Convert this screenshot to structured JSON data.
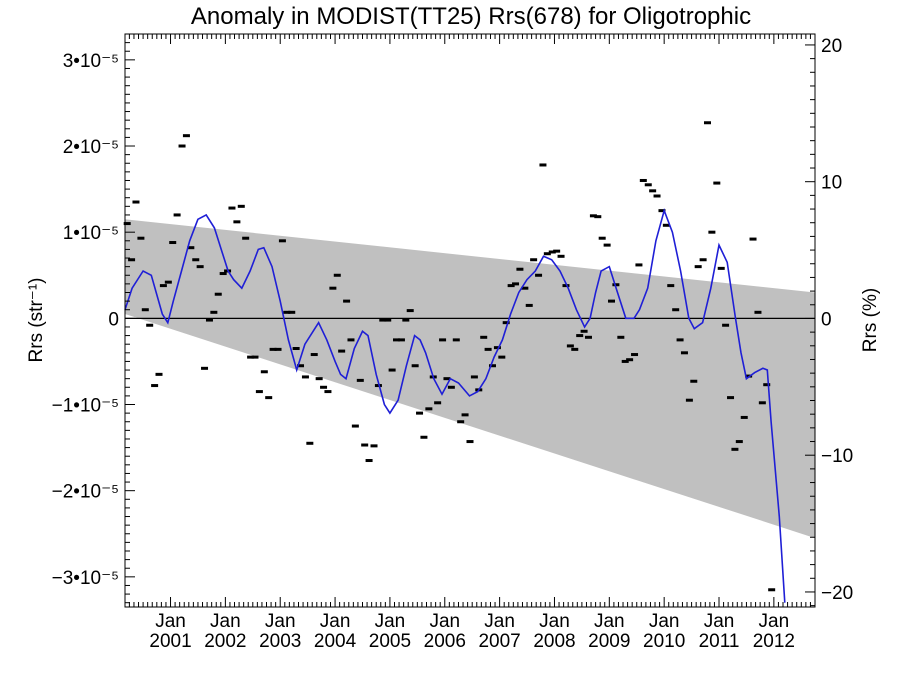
{
  "chart_data": {
    "type": "line",
    "title": "Anomaly in MODIST(TT25) Rrs(678) for Oligotrophic",
    "ylabel_left": "Rrs (str⁻¹)",
    "ylabel_right": "Rrs (%)",
    "xlabel": "",
    "x_unit": "year (decimal)",
    "xlim": [
      2000.17,
      2012.75
    ],
    "ylim_left": [
      -3.35e-05,
      3.3e-05
    ],
    "ylim_right": [
      -21.1,
      20.8
    ],
    "grid": false,
    "legend": "none",
    "x_ticks": [
      {
        "month": "Jan",
        "year": "2001",
        "x": 2001.0
      },
      {
        "month": "Jan",
        "year": "2002",
        "x": 2002.0
      },
      {
        "month": "Jan",
        "year": "2003",
        "x": 2003.0
      },
      {
        "month": "Jan",
        "year": "2004",
        "x": 2004.0
      },
      {
        "month": "Jan",
        "year": "2005",
        "x": 2005.0
      },
      {
        "month": "Jan",
        "year": "2006",
        "x": 2006.0
      },
      {
        "month": "Jan",
        "year": "2007",
        "x": 2007.0
      },
      {
        "month": "Jan",
        "year": "2008",
        "x": 2008.0
      },
      {
        "month": "Jan",
        "year": "2009",
        "x": 2009.0
      },
      {
        "month": "Jan",
        "year": "2010",
        "x": 2010.0
      },
      {
        "month": "Jan",
        "year": "2011",
        "x": 2011.0
      },
      {
        "month": "Jan",
        "year": "2012",
        "x": 2012.0
      }
    ],
    "y_ticks_left": [
      {
        "label": "−3•10⁻⁵",
        "value": -3e-05
      },
      {
        "label": "−2•10⁻⁵",
        "value": -2e-05
      },
      {
        "label": "−1•10⁻⁵",
        "value": -1e-05
      },
      {
        "label": "0",
        "value": 0
      },
      {
        "label": "1•10⁻⁵",
        "value": 1e-05
      },
      {
        "label": "2•10⁻⁵",
        "value": 2e-05
      },
      {
        "label": "3•10⁻⁵",
        "value": 3e-05
      }
    ],
    "y_ticks_right": [
      {
        "label": "−20",
        "value": -20
      },
      {
        "label": "−10",
        "value": -10
      },
      {
        "label": "0",
        "value": 0
      },
      {
        "label": "10",
        "value": 10
      },
      {
        "label": "20",
        "value": 20
      }
    ],
    "uncertainty_band": {
      "color": "#c0c0c0",
      "x": [
        2000.17,
        2012.75
      ],
      "upper": [
        1.15e-05,
        3e-06
      ],
      "lower": [
        5e-07,
        -2.55e-05
      ]
    },
    "zero_line": {
      "value": 0,
      "color": "#000000"
    },
    "series": [
      {
        "style": "markers",
        "color": "#000000",
        "points": [
          [
            2000.21,
            1.1e-05
          ],
          [
            2000.29,
            6.8e-06
          ],
          [
            2000.37,
            1.35e-05
          ],
          [
            2000.46,
            9.3e-06
          ],
          [
            2000.54,
            1e-06
          ],
          [
            2000.62,
            -8e-07
          ],
          [
            2000.71,
            -7.8e-06
          ],
          [
            2000.79,
            -6.5e-06
          ],
          [
            2000.87,
            3.8e-06
          ],
          [
            2000.96,
            4.2e-06
          ],
          [
            2001.04,
            8.8e-06
          ],
          [
            2001.12,
            1.2e-05
          ],
          [
            2001.21,
            2e-05
          ],
          [
            2001.29,
            2.12e-05
          ],
          [
            2001.37,
            8.2e-06
          ],
          [
            2001.46,
            6.8e-06
          ],
          [
            2001.54,
            6e-06
          ],
          [
            2001.62,
            -5.8e-06
          ],
          [
            2001.71,
            -2e-07
          ],
          [
            2001.79,
            7e-07
          ],
          [
            2001.87,
            2.8e-06
          ],
          [
            2001.96,
            5.2e-06
          ],
          [
            2002.04,
            5.5e-06
          ],
          [
            2002.12,
            1.28e-05
          ],
          [
            2002.21,
            1.12e-05
          ],
          [
            2002.29,
            1.3e-05
          ],
          [
            2002.37,
            9.3e-06
          ],
          [
            2002.46,
            -4.5e-06
          ],
          [
            2002.54,
            -4.5e-06
          ],
          [
            2002.62,
            -8.5e-06
          ],
          [
            2002.71,
            -6.2e-06
          ],
          [
            2002.79,
            -9.2e-06
          ],
          [
            2002.87,
            -3.6e-06
          ],
          [
            2002.96,
            -3.6e-06
          ],
          [
            2003.04,
            9e-06
          ],
          [
            2003.12,
            7e-07
          ],
          [
            2003.21,
            7e-07
          ],
          [
            2003.29,
            -3.5e-06
          ],
          [
            2003.37,
            -5.5e-06
          ],
          [
            2003.46,
            -6.8e-06
          ],
          [
            2003.54,
            -1.45e-05
          ],
          [
            2003.62,
            -4.2e-06
          ],
          [
            2003.71,
            -7e-06
          ],
          [
            2003.79,
            -8e-06
          ],
          [
            2003.87,
            -8.5e-06
          ],
          [
            2003.96,
            3.5e-06
          ],
          [
            2004.04,
            5e-06
          ],
          [
            2004.12,
            -3.8e-06
          ],
          [
            2004.21,
            2e-06
          ],
          [
            2004.29,
            -2.5e-06
          ],
          [
            2004.37,
            -1.25e-05
          ],
          [
            2004.46,
            -7.2e-06
          ],
          [
            2004.54,
            -1.47e-05
          ],
          [
            2004.62,
            -1.65e-05
          ],
          [
            2004.71,
            -1.48e-05
          ],
          [
            2004.79,
            -7.8e-06
          ],
          [
            2004.87,
            -2e-07
          ],
          [
            2004.96,
            -2e-07
          ],
          [
            2005.04,
            -6e-06
          ],
          [
            2005.12,
            -2.5e-06
          ],
          [
            2005.21,
            -2.5e-06
          ],
          [
            2005.29,
            -2e-07
          ],
          [
            2005.37,
            9e-07
          ],
          [
            2005.46,
            -5.5e-06
          ],
          [
            2005.54,
            -1.1e-05
          ],
          [
            2005.62,
            -1.38e-05
          ],
          [
            2005.71,
            -1.05e-05
          ],
          [
            2005.79,
            -6.8e-06
          ],
          [
            2005.87,
            -9.8e-06
          ],
          [
            2005.96,
            -2.5e-06
          ],
          [
            2006.04,
            -7e-06
          ],
          [
            2006.12,
            -8e-06
          ],
          [
            2006.21,
            -2.5e-06
          ],
          [
            2006.29,
            -1.2e-05
          ],
          [
            2006.37,
            -1.12e-05
          ],
          [
            2006.46,
            -1.43e-05
          ],
          [
            2006.54,
            -6.8e-06
          ],
          [
            2006.62,
            -8.3e-06
          ],
          [
            2006.71,
            -2.2e-06
          ],
          [
            2006.79,
            -3.6e-06
          ],
          [
            2006.87,
            -5.5e-06
          ],
          [
            2006.96,
            -3.4e-06
          ],
          [
            2007.04,
            -4.5e-06
          ],
          [
            2007.12,
            -5e-07
          ],
          [
            2007.21,
            3.8e-06
          ],
          [
            2007.29,
            4e-06
          ],
          [
            2007.37,
            5.7e-06
          ],
          [
            2007.46,
            3.5e-06
          ],
          [
            2007.54,
            1.5e-06
          ],
          [
            2007.62,
            6.8e-06
          ],
          [
            2007.71,
            5e-06
          ],
          [
            2007.79,
            1.78e-05
          ],
          [
            2007.87,
            7.5e-06
          ],
          [
            2007.96,
            7.7e-06
          ],
          [
            2008.04,
            7.8e-06
          ],
          [
            2008.12,
            7.2e-06
          ],
          [
            2008.21,
            3.8e-06
          ],
          [
            2008.29,
            -3.2e-06
          ],
          [
            2008.37,
            -3.6e-06
          ],
          [
            2008.46,
            -2e-06
          ],
          [
            2008.54,
            -1.5e-06
          ],
          [
            2008.62,
            -2.2e-06
          ],
          [
            2008.71,
            1.19e-05
          ],
          [
            2008.79,
            1.18e-05
          ],
          [
            2008.87,
            9.3e-06
          ],
          [
            2008.96,
            8.5e-06
          ],
          [
            2009.04,
            2e-06
          ],
          [
            2009.12,
            3.9e-06
          ],
          [
            2009.21,
            -2.2e-06
          ],
          [
            2009.29,
            -5e-06
          ],
          [
            2009.37,
            -4.8e-06
          ],
          [
            2009.46,
            -4.2e-06
          ],
          [
            2009.54,
            6.2e-06
          ],
          [
            2009.62,
            1.6e-05
          ],
          [
            2009.71,
            1.55e-05
          ],
          [
            2009.79,
            1.48e-05
          ],
          [
            2009.87,
            1.42e-05
          ],
          [
            2009.96,
            1.25e-05
          ],
          [
            2010.04,
            1.08e-05
          ],
          [
            2010.12,
            3.8e-06
          ],
          [
            2010.21,
            1e-06
          ],
          [
            2010.29,
            -2.5e-06
          ],
          [
            2010.37,
            -4e-06
          ],
          [
            2010.46,
            -9.5e-06
          ],
          [
            2010.54,
            -7.3e-06
          ],
          [
            2010.62,
            6e-06
          ],
          [
            2010.71,
            6.8e-06
          ],
          [
            2010.79,
            2.27e-05
          ],
          [
            2010.87,
            1e-05
          ],
          [
            2010.96,
            1.57e-05
          ],
          [
            2011.04,
            5.8e-06
          ],
          [
            2011.12,
            -8e-07
          ],
          [
            2011.21,
            -9.2e-06
          ],
          [
            2011.29,
            -1.52e-05
          ],
          [
            2011.37,
            -1.43e-05
          ],
          [
            2011.46,
            -1.15e-05
          ],
          [
            2011.54,
            -6.7e-06
          ],
          [
            2011.62,
            9.2e-06
          ],
          [
            2011.71,
            7e-07
          ],
          [
            2011.79,
            -9.8e-06
          ],
          [
            2011.87,
            -7.7e-06
          ],
          [
            2011.96,
            -3.15e-05
          ]
        ]
      },
      {
        "style": "line",
        "color": "#1f1fd6",
        "points": [
          [
            2000.17,
            1e-06
          ],
          [
            2000.3,
            3.5e-06
          ],
          [
            2000.5,
            5.5e-06
          ],
          [
            2000.65,
            5e-06
          ],
          [
            2000.85,
            5e-07
          ],
          [
            2000.95,
            -5e-07
          ],
          [
            2001.05,
            2e-06
          ],
          [
            2001.2,
            5.5e-06
          ],
          [
            2001.35,
            9e-06
          ],
          [
            2001.5,
            1.15e-05
          ],
          [
            2001.65,
            1.2e-05
          ],
          [
            2001.8,
            1.05e-05
          ],
          [
            2001.95,
            7.5e-06
          ],
          [
            2002.05,
            5.5e-06
          ],
          [
            2002.15,
            4.5e-06
          ],
          [
            2002.3,
            3.5e-06
          ],
          [
            2002.45,
            5.5e-06
          ],
          [
            2002.6,
            8e-06
          ],
          [
            2002.7,
            8.2e-06
          ],
          [
            2002.85,
            6e-06
          ],
          [
            2003.0,
            2e-06
          ],
          [
            2003.15,
            -2.5e-06
          ],
          [
            2003.3,
            -6e-06
          ],
          [
            2003.45,
            -3e-06
          ],
          [
            2003.6,
            -1.5e-06
          ],
          [
            2003.7,
            -5e-07
          ],
          [
            2003.85,
            -2.5e-06
          ],
          [
            2004.0,
            -5e-06
          ],
          [
            2004.1,
            -6.5e-06
          ],
          [
            2004.2,
            -7e-06
          ],
          [
            2004.35,
            -3.5e-06
          ],
          [
            2004.5,
            -1.5e-06
          ],
          [
            2004.6,
            -2e-06
          ],
          [
            2004.75,
            -6.5e-06
          ],
          [
            2004.9,
            -1e-05
          ],
          [
            2005.0,
            -1.1e-05
          ],
          [
            2005.15,
            -9.5e-06
          ],
          [
            2005.3,
            -5.5e-06
          ],
          [
            2005.45,
            -2e-06
          ],
          [
            2005.55,
            -2.5e-06
          ],
          [
            2005.65,
            -4e-06
          ],
          [
            2005.8,
            -7e-06
          ],
          [
            2005.95,
            -8.8e-06
          ],
          [
            2006.1,
            -7e-06
          ],
          [
            2006.25,
            -7.5e-06
          ],
          [
            2006.45,
            -9e-06
          ],
          [
            2006.6,
            -8.5e-06
          ],
          [
            2006.75,
            -7e-06
          ],
          [
            2006.9,
            -4.5e-06
          ],
          [
            2007.05,
            -2.5e-06
          ],
          [
            2007.2,
            5e-07
          ],
          [
            2007.35,
            3e-06
          ],
          [
            2007.5,
            4.5e-06
          ],
          [
            2007.65,
            5.5e-06
          ],
          [
            2007.8,
            7.2e-06
          ],
          [
            2007.95,
            6.8e-06
          ],
          [
            2008.1,
            5.5e-06
          ],
          [
            2008.25,
            3.5e-06
          ],
          [
            2008.4,
            1e-06
          ],
          [
            2008.55,
            -1e-06
          ],
          [
            2008.65,
            0.0
          ],
          [
            2008.75,
            3e-06
          ],
          [
            2008.85,
            5.5e-06
          ],
          [
            2009.0,
            6e-06
          ],
          [
            2009.15,
            3e-06
          ],
          [
            2009.3,
            0.0
          ],
          [
            2009.45,
            0.0
          ],
          [
            2009.55,
            1e-06
          ],
          [
            2009.7,
            3.5e-06
          ],
          [
            2009.85,
            9e-06
          ],
          [
            2010.0,
            1.25e-05
          ],
          [
            2010.15,
            1e-05
          ],
          [
            2010.3,
            5.5e-06
          ],
          [
            2010.45,
            0.0
          ],
          [
            2010.55,
            -1.2e-06
          ],
          [
            2010.7,
            -5e-07
          ],
          [
            2010.85,
            3.5e-06
          ],
          [
            2011.0,
            8.5e-06
          ],
          [
            2011.15,
            6.5e-06
          ],
          [
            2011.3,
            0.0
          ],
          [
            2011.4,
            -4e-06
          ],
          [
            2011.5,
            -7e-06
          ],
          [
            2011.65,
            -6.3e-06
          ],
          [
            2011.8,
            -5.8e-06
          ],
          [
            2011.88,
            -6e-06
          ],
          [
            2011.95,
            -1.2e-05
          ],
          [
            2012.1,
            -2.3e-05
          ],
          [
            2012.2,
            -3.3e-05
          ]
        ]
      }
    ]
  }
}
